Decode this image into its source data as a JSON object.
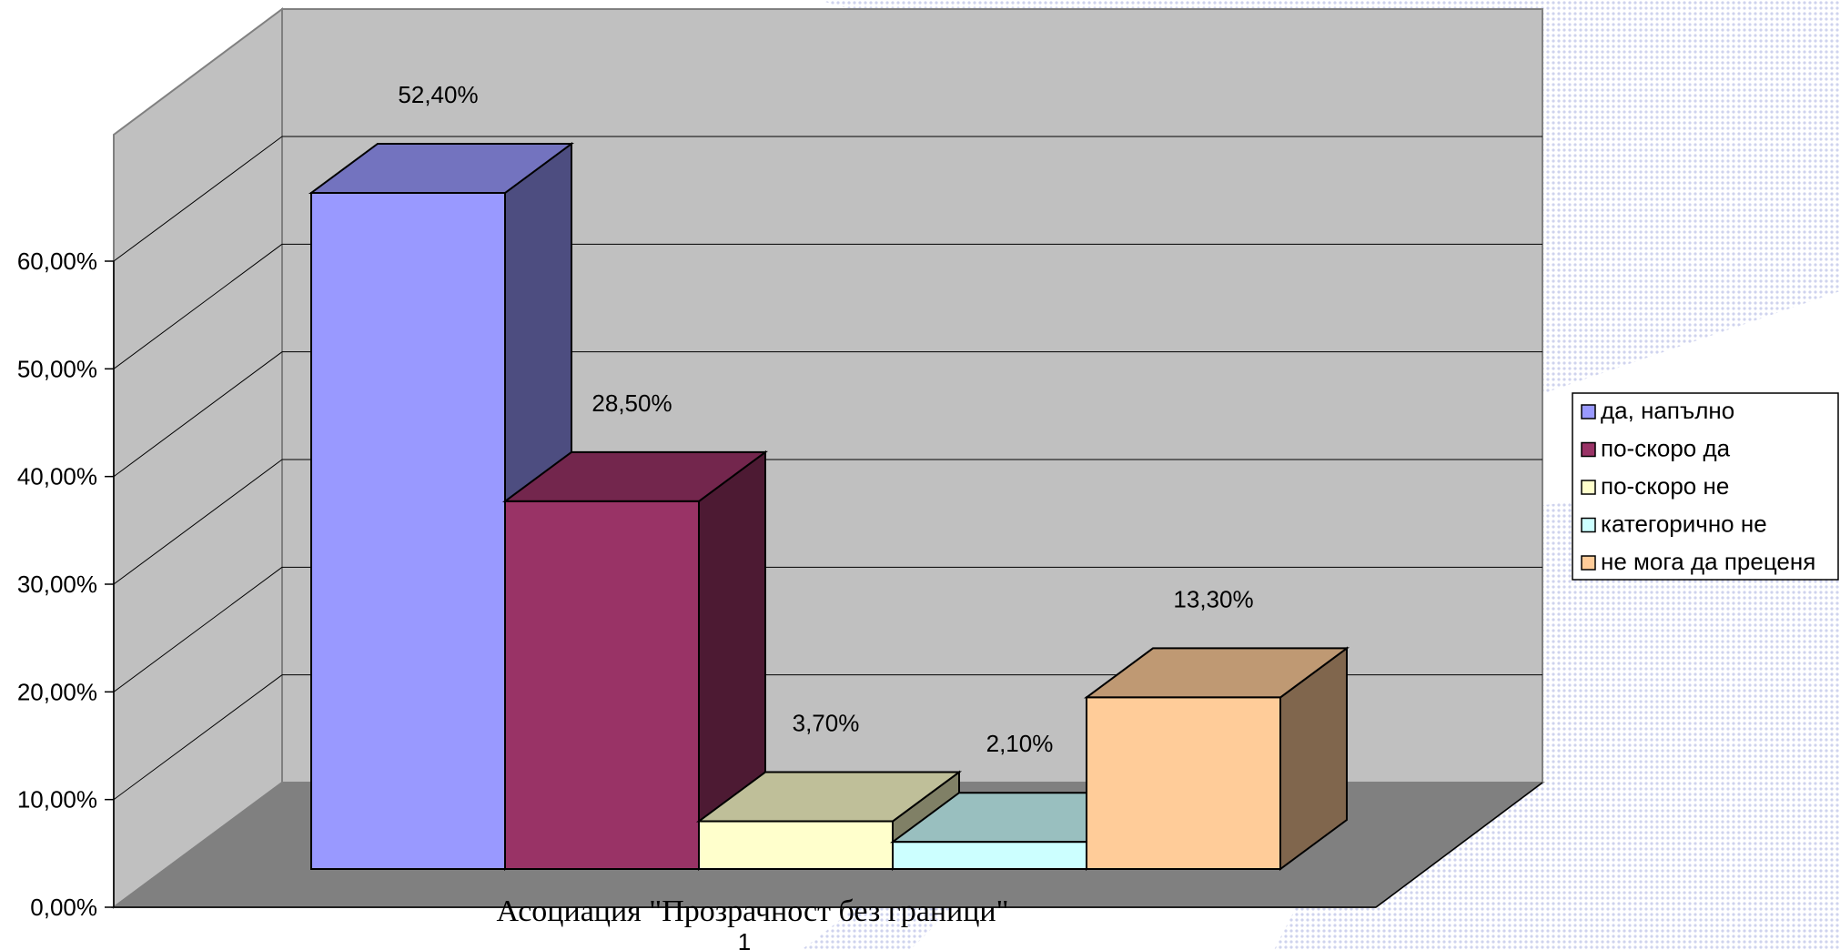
{
  "chart_data": {
    "type": "bar",
    "subtype": "3d-clustered-column",
    "category_title": "Асоциация \"Прозрачност без граници\"",
    "categories": [
      "1"
    ],
    "series": [
      {
        "name": "да, напълно",
        "values": [
          52.4
        ],
        "label": "52,40%",
        "color": "#9999ff"
      },
      {
        "name": "по-скоро да",
        "values": [
          28.5
        ],
        "label": "28,50%",
        "color": "#993366"
      },
      {
        "name": "по-скоро не",
        "values": [
          3.7
        ],
        "label": "3,70%",
        "color": "#ffffcc"
      },
      {
        "name": "категорично не",
        "values": [
          2.1
        ],
        "label": "2,10%",
        "color": "#ccffff"
      },
      {
        "name": "не мога да преценя",
        "values": [
          13.3
        ],
        "label": "13,30%",
        "color": "#ffcc99"
      }
    ],
    "y_ticks": [
      "0,00%",
      "10,00%",
      "20,00%",
      "30,00%",
      "40,00%",
      "50,00%",
      "60,00%"
    ],
    "ylim": [
      0,
      60
    ],
    "grid": true,
    "legend_position": "right",
    "wall_color": "#c0c0c0",
    "floor_color": "#808080"
  }
}
